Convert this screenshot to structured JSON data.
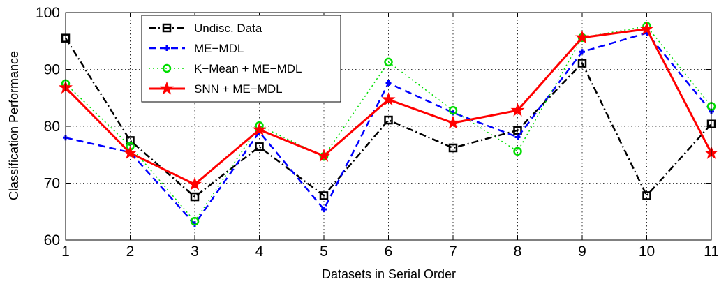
{
  "chart_data": {
    "type": "line",
    "xlabel": "Datasets in Serial Order",
    "ylabel": "Classification Performance",
    "x": [
      1,
      2,
      3,
      4,
      5,
      6,
      7,
      8,
      9,
      10,
      11
    ],
    "xlim": [
      1,
      11
    ],
    "ylim": [
      60,
      100
    ],
    "yticks": [
      60,
      70,
      80,
      90,
      100
    ],
    "grid": true,
    "legend_position": "top-left",
    "series": [
      {
        "name": "Undisc. Data",
        "values": [
          95.5,
          77.5,
          67.6,
          76.4,
          67.8,
          81.1,
          76.2,
          79.3,
          91.1,
          67.8,
          80.4
        ],
        "color": "#000000",
        "line_style": "dash-dot",
        "marker": "square"
      },
      {
        "name": "ME−MDL",
        "values": [
          78.0,
          75.4,
          62.8,
          79.0,
          65.4,
          87.6,
          82.4,
          78.1,
          93.1,
          96.4,
          82.6
        ],
        "color": "#0000ff",
        "line_style": "dashed",
        "marker": "plus"
      },
      {
        "name": "K−Mean + ME−MDL",
        "values": [
          87.5,
          76.5,
          63.3,
          80.1,
          74.7,
          91.3,
          82.8,
          75.6,
          95.6,
          97.6,
          83.5
        ],
        "color": "#00dd00",
        "line_style": "dotted",
        "marker": "circle"
      },
      {
        "name": "SNN + ME−MDL",
        "values": [
          86.8,
          75.3,
          69.8,
          79.4,
          74.8,
          84.7,
          80.6,
          82.8,
          95.6,
          97.1,
          75.3
        ],
        "color": "#ff0000",
        "line_style": "solid",
        "marker": "star"
      }
    ]
  }
}
